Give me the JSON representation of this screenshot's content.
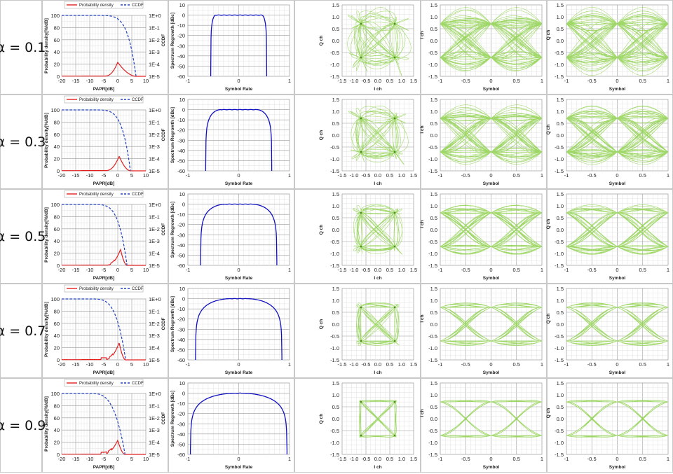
{
  "rows": [
    {
      "label": "α = 0.1",
      "alpha": 0.1
    },
    {
      "label": "α = 0.3",
      "alpha": 0.3
    },
    {
      "label": "α = 0.5",
      "alpha": 0.5
    },
    {
      "label": "α = 0.7",
      "alpha": 0.7
    },
    {
      "label": "α = 0.9",
      "alpha": 0.9
    }
  ],
  "colors": {
    "pdf": "#e02020",
    "ccdf": "#2040c0",
    "spectrum": "#1010c0",
    "constellation": "#8fd14f",
    "grid_minor": "#e2e2e2",
    "grid_major": "#9a9a9a",
    "cell_border": "#bbbbbb"
  },
  "chart_data": [
    {
      "type": "line",
      "panel": "papr",
      "legend": [
        "Probability density",
        "CCDF"
      ],
      "xlabel": "PAPR[dB]",
      "ylabel": "Probability density[%/dB]",
      "y2label": "CCDF",
      "xlim": [
        -20,
        10
      ],
      "ylim": [
        0,
        100
      ],
      "xticks": [
        "-20",
        "-15",
        "-10",
        "-5",
        "0",
        "5",
        "10"
      ],
      "yticks": [
        "0",
        "20",
        "40",
        "60",
        "80",
        "100"
      ],
      "y2ticks": [
        "1E-5",
        "1E-4",
        "1E-3",
        "1E-2",
        "1E-1",
        "1E+0"
      ],
      "series": [
        {
          "rows": [
            {
              "alpha": 0.1,
              "pdf_peak_x": 0,
              "pdf_peak_y": 23,
              "ccdf_edge": 6.5
            },
            {
              "alpha": 0.3,
              "pdf_peak_x": 0.5,
              "pdf_peak_y": 24,
              "ccdf_edge": 4.5
            },
            {
              "alpha": 0.5,
              "pdf_peak_x": 1,
              "pdf_peak_y": 26,
              "ccdf_edge": 3.3
            },
            {
              "alpha": 0.7,
              "pdf_peak_x": 0.5,
              "pdf_peak_y": 28,
              "ccdf_edge": 2.8
            },
            {
              "alpha": 0.9,
              "pdf_peak_x": 0,
              "pdf_peak_y": 23,
              "ccdf_edge": 2.6
            }
          ]
        }
      ]
    },
    {
      "type": "line",
      "panel": "spectrum",
      "xlabel": "Symbol Rate",
      "ylabel": "Spectrum Regrowth [dBc]",
      "xlim": [
        -1,
        1
      ],
      "ylim": [
        -60,
        10
      ],
      "xticks": [
        "-1",
        "0",
        "1"
      ],
      "yticks": [
        "10",
        "0",
        "-10",
        "-20",
        "-30",
        "-40",
        "-50",
        "-60"
      ],
      "series": [
        {
          "name": "",
          "edges": [
            0.55,
            0.65,
            0.75,
            0.85,
            0.95
          ]
        }
      ]
    },
    {
      "type": "scatter",
      "panel": "constellation",
      "xlabel": "I ch",
      "ylabel": "Q ch",
      "xlim": [
        -1.5,
        1.5
      ],
      "ylim": [
        -1.5,
        1.5
      ],
      "xticks": [
        "-1.5",
        "-1.0",
        "-0.5",
        "0.0",
        "0.5",
        "1.0",
        "1.5"
      ],
      "yticks": [
        "1.5",
        "1.0",
        "0.5",
        "0.0",
        "-0.5",
        "-1.0",
        "-1.5"
      ],
      "points": [
        [
          0.707,
          0.707
        ],
        [
          -0.707,
          0.707
        ],
        [
          -0.707,
          -0.707
        ],
        [
          0.707,
          -0.707
        ]
      ]
    },
    {
      "type": "line",
      "panel": "eye-i",
      "xlabel": "Symbol",
      "ylabel": "I ch",
      "xlim": [
        -1,
        1
      ],
      "ylim": [
        -1.5,
        1.5
      ],
      "xticks": [
        "-1",
        "-0.5",
        "0",
        "0.5",
        "1"
      ],
      "yticks": [
        "1.5",
        "1.0",
        "0.5",
        "0.0",
        "-0.5",
        "-1.0",
        "-1.5"
      ]
    },
    {
      "type": "line",
      "panel": "eye-q",
      "xlabel": "Symbol",
      "ylabel": "Q ch",
      "xlim": [
        -1,
        1
      ],
      "ylim": [
        -1.5,
        1.5
      ],
      "xticks": [
        "-1",
        "-0.5",
        "0",
        "0.5",
        "1"
      ],
      "yticks": [
        "1.5",
        "1.0",
        "0.5",
        "0.0",
        "-0.5",
        "-1.0",
        "-1.5"
      ]
    }
  ]
}
